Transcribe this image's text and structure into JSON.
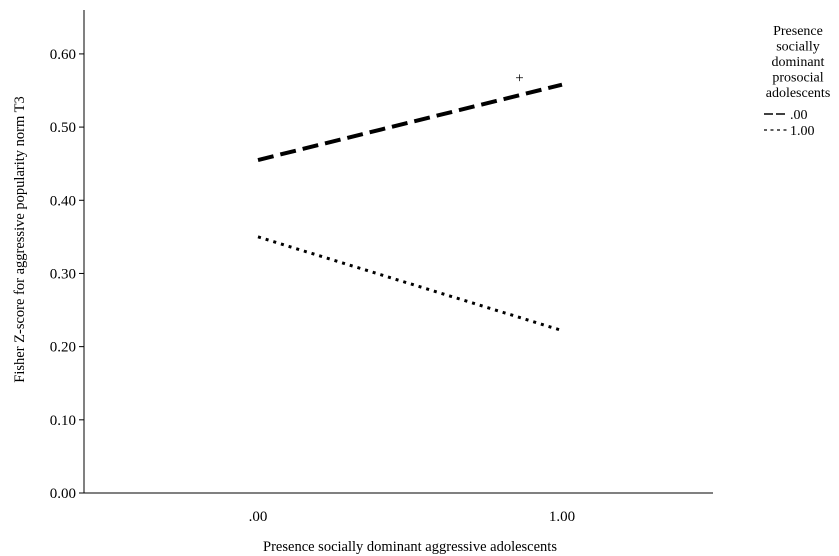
{
  "chart_data": {
    "type": "line",
    "xlabel": "Presence socially dominant aggressive adolescents",
    "ylabel": "Fisher Z-score for aggressive popularity norm T3",
    "categories": [
      ".00",
      "1.00"
    ],
    "ylim": [
      0,
      0.66
    ],
    "yticks": [
      0.0,
      0.1,
      0.2,
      0.3,
      0.4,
      0.5,
      0.6
    ],
    "ytick_labels": [
      "0.00",
      "0.10",
      "0.20",
      "0.30",
      "0.40",
      "0.50",
      "0.60"
    ],
    "grid": false,
    "legend": {
      "title_lines": [
        "Presence",
        "socially",
        "dominant",
        "prosocial",
        "adolescents"
      ],
      "placement": "right"
    },
    "series": [
      {
        "name": ".00",
        "values": [
          0.455,
          0.558
        ],
        "style": "dashed",
        "color": "#000000"
      },
      {
        "name": "1.00",
        "values": [
          0.35,
          0.222
        ],
        "style": "dotted",
        "color": "#000000"
      }
    ],
    "annotations": [
      {
        "text": "+",
        "x": 0.86,
        "y": 0.568
      }
    ]
  }
}
